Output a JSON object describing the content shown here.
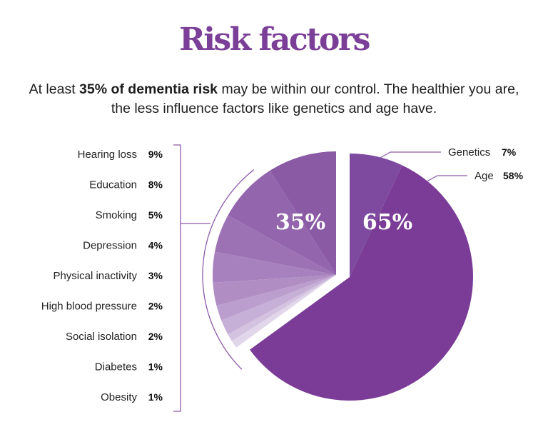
{
  "header": {
    "title": "Risk factors",
    "subtitle_pre": "At least ",
    "subtitle_bold": "35% of dementia risk",
    "subtitle_post": " may be within our control. The healthier you are, the less influence factors like genetics and age have."
  },
  "chart_data": {
    "type": "pie",
    "title": "Risk factors",
    "groups": [
      {
        "label": "35%",
        "value": 35,
        "exploded": true
      },
      {
        "label": "65%",
        "value": 65,
        "exploded": false
      }
    ],
    "left_slices": [
      {
        "name": "Hearing loss",
        "value": 9,
        "label": "9%",
        "color": "#8a5aa5"
      },
      {
        "name": "Education",
        "value": 8,
        "label": "8%",
        "color": "#9365ad"
      },
      {
        "name": "Smoking",
        "value": 5,
        "label": "5%",
        "color": "#9d72b5"
      },
      {
        "name": "Depression",
        "value": 4,
        "label": "4%",
        "color": "#a781bd"
      },
      {
        "name": "Physical inactivity",
        "value": 3,
        "label": "3%",
        "color": "#b08ec4"
      },
      {
        "name": "High blood pressure",
        "value": 2,
        "label": "2%",
        "color": "#bb9ecd"
      },
      {
        "name": "Social isolation",
        "value": 2,
        "label": "2%",
        "color": "#c7b0d7"
      },
      {
        "name": "Diabetes",
        "value": 1,
        "label": "1%",
        "color": "#d4c3e0"
      },
      {
        "name": "Obesity",
        "value": 1,
        "label": "1%",
        "color": "#e2d6ea"
      }
    ],
    "right_slices": [
      {
        "name": "Genetics",
        "value": 7,
        "label": "7%",
        "color": "#7d4a9f"
      },
      {
        "name": "Age",
        "value": 58,
        "label": "58%",
        "color": "#7a3c96"
      }
    ]
  }
}
